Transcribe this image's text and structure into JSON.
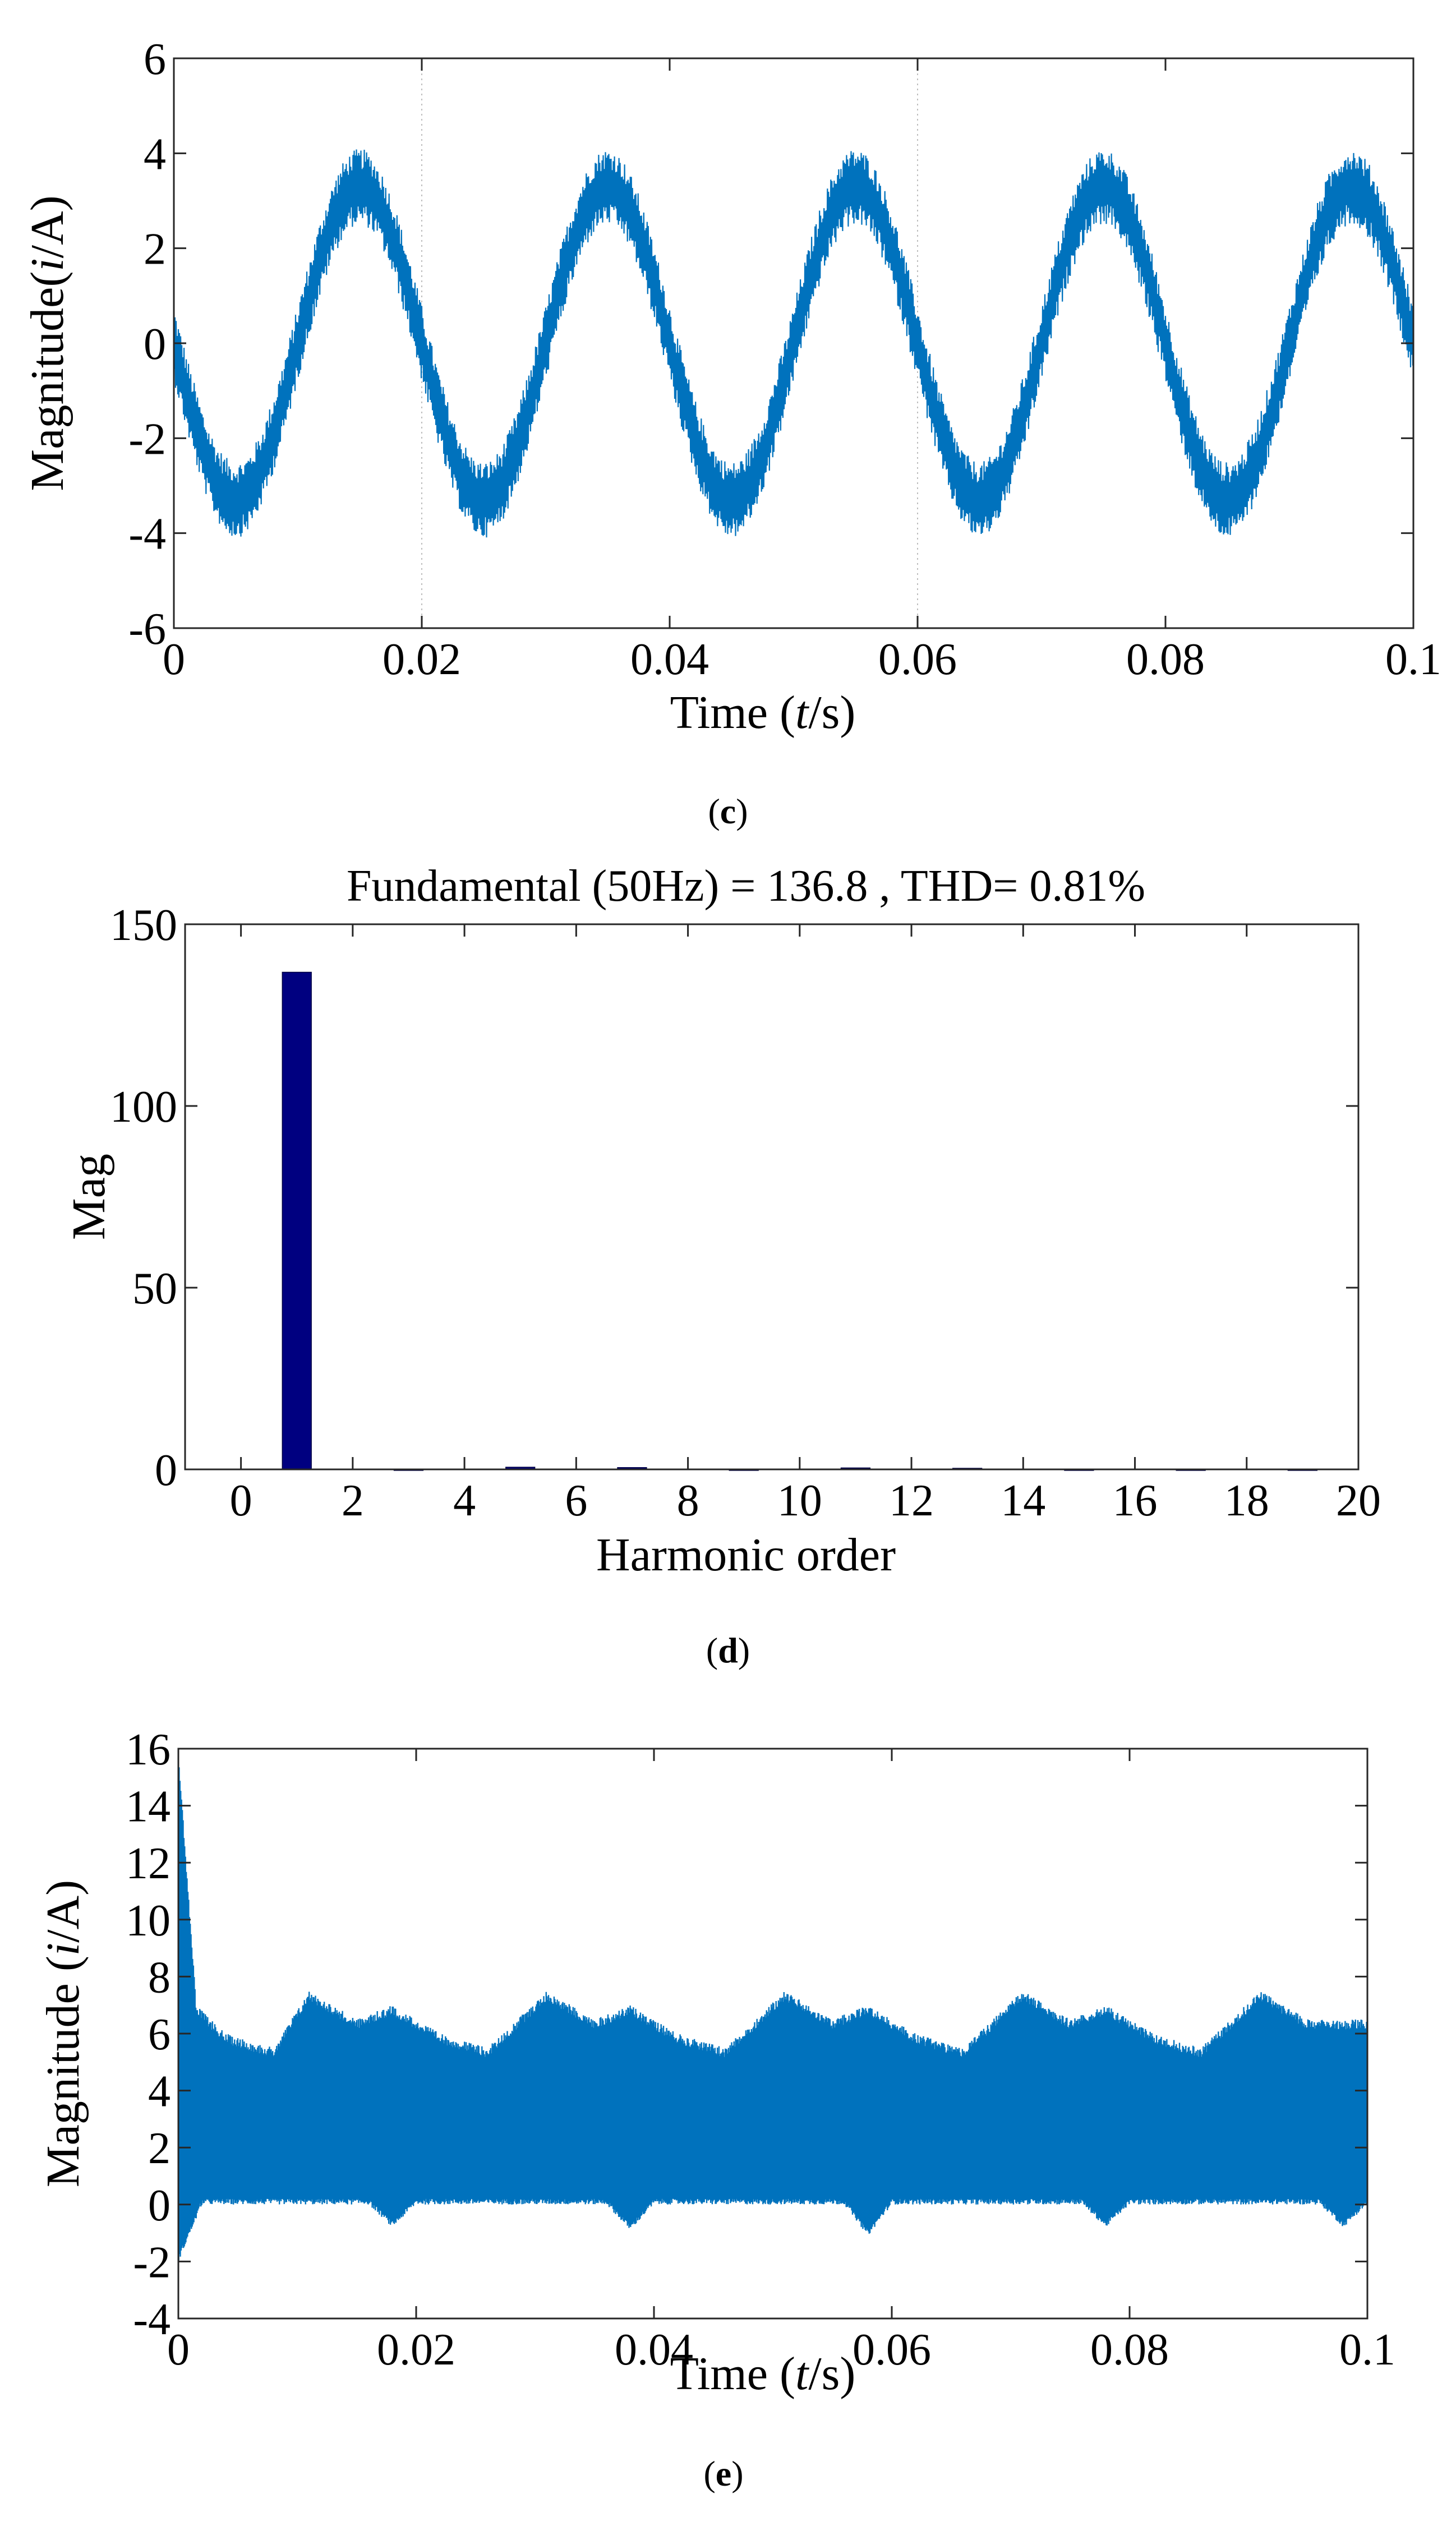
{
  "chart_data": [
    {
      "type": "line",
      "panel_label": "c",
      "title": "",
      "xlabel_parts": [
        "Time (",
        "t",
        "/s)"
      ],
      "ylabel_parts": [
        "Magnitude(",
        "i",
        "/A)"
      ],
      "xlim": [
        0,
        0.1
      ],
      "ylim": [
        -6,
        6
      ],
      "xticks": [
        "0",
        "0.02",
        "0.04",
        "0.06",
        "0.08",
        "0.1"
      ],
      "yticks": [
        "6",
        "4",
        "2",
        "0",
        "-2",
        "-4",
        "-6"
      ],
      "color": "#0072BD",
      "series": [
        {
          "frequency_hz": 50,
          "amplitude": 3.3,
          "phase_deg": 180,
          "ripple_band": 1.6,
          "x_range": [
            0,
            0.1
          ]
        }
      ],
      "gridlines_x": [
        0.02,
        0.06
      ],
      "grid": "partial"
    },
    {
      "type": "bar",
      "panel_label": "d",
      "title": "Fundamental (50Hz) = 136.8 , THD= 0.81%",
      "xlabel": "Harmonic order",
      "ylabel": "Mag",
      "xlim": [
        -1,
        20
      ],
      "ylim": [
        0,
        150
      ],
      "xticks": [
        "0",
        "2",
        "4",
        "6",
        "8",
        "10",
        "12",
        "14",
        "16",
        "18",
        "20"
      ],
      "yticks": [
        "150",
        "100",
        "50",
        "0"
      ],
      "color": "#000080",
      "categories": [
        1,
        3,
        5,
        7,
        9,
        11,
        13,
        15,
        17,
        19
      ],
      "values": [
        136.8,
        0.1,
        0.6,
        0.5,
        0.1,
        0.4,
        0.3,
        0.1,
        0.1,
        0.1
      ]
    },
    {
      "type": "line",
      "panel_label": "e",
      "title": "",
      "xlabel_parts": [
        "Time (",
        "t",
        "/s)"
      ],
      "ylabel_parts": [
        "Magnitude (",
        "i",
        "/A)"
      ],
      "xlim": [
        0,
        0.1
      ],
      "ylim": [
        -4,
        16
      ],
      "xticks": [
        "0",
        "0.02",
        "0.04",
        "0.06",
        "0.08",
        "0.1"
      ],
      "yticks": [
        "16",
        "14",
        "12",
        "10",
        "8",
        "6",
        "4",
        "2",
        "0",
        "-2",
        "-4"
      ],
      "color": "#0072BD",
      "series": [
        {
          "baseline": 0,
          "envelope_top": [
            [
              0,
              16
            ],
            [
              0.0015,
              7
            ],
            [
              0.004,
              6
            ],
            [
              0.008,
              5.5
            ],
            [
              0.011,
              7.5
            ],
            [
              0.015,
              6.5
            ],
            [
              0.018,
              7
            ],
            [
              0.022,
              6
            ],
            [
              0.026,
              5.5
            ],
            [
              0.031,
              7.5
            ],
            [
              0.035,
              6.5
            ],
            [
              0.038,
              7
            ],
            [
              0.042,
              6
            ],
            [
              0.046,
              5.5
            ],
            [
              0.051,
              7.5
            ],
            [
              0.055,
              6.5
            ],
            [
              0.058,
              7
            ],
            [
              0.062,
              6
            ],
            [
              0.066,
              5.5
            ],
            [
              0.071,
              7.5
            ],
            [
              0.075,
              6.5
            ],
            [
              0.078,
              7
            ],
            [
              0.082,
              6
            ],
            [
              0.086,
              5.5
            ],
            [
              0.091,
              7.5
            ],
            [
              0.095,
              6.5
            ],
            [
              0.1,
              6.5
            ]
          ],
          "envelope_bottom": [
            [
              0,
              -2
            ],
            [
              0.002,
              0
            ],
            [
              0.016,
              0
            ],
            [
              0.018,
              -0.8
            ],
            [
              0.02,
              0
            ],
            [
              0.036,
              0
            ],
            [
              0.038,
              -0.9
            ],
            [
              0.04,
              0
            ],
            [
              0.056,
              0
            ],
            [
              0.058,
              -1.1
            ],
            [
              0.06,
              0
            ],
            [
              0.076,
              0
            ],
            [
              0.078,
              -0.8
            ],
            [
              0.08,
              0
            ],
            [
              0.096,
              0
            ],
            [
              0.098,
              -0.8
            ],
            [
              0.1,
              0
            ]
          ]
        }
      ]
    }
  ]
}
